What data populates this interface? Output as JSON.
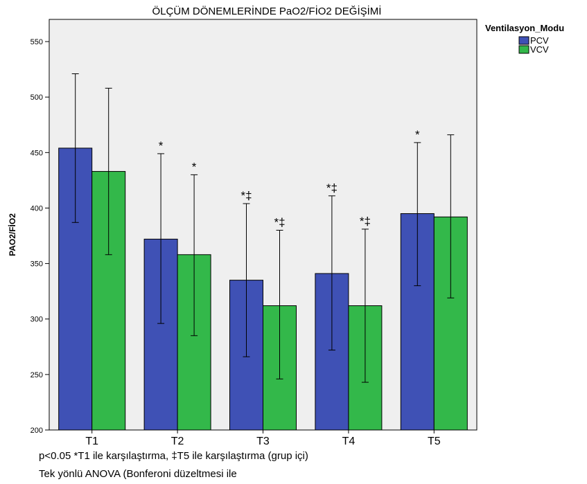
{
  "chart_data": {
    "type": "bar",
    "title": "ÖLÇÜM DÖNEMLERİNDE PaO2/FİO2 DEĞİŞİMİ",
    "xlabel": "",
    "ylabel": "PAO2/FİO2",
    "ylim": [
      200,
      570
    ],
    "yticks": [
      200,
      250,
      300,
      350,
      400,
      450,
      500,
      550
    ],
    "categories": [
      "T1",
      "T2",
      "T3",
      "T4",
      "T5"
    ],
    "series": [
      {
        "name": "PCV",
        "color": "#3f51b5",
        "values": [
          454,
          372,
          335,
          341,
          395
        ],
        "err_low": [
          387,
          296,
          266,
          272,
          330
        ],
        "err_high": [
          521,
          449,
          404,
          411,
          459
        ],
        "marks": [
          "",
          "*",
          "*‡",
          "*‡",
          "*"
        ]
      },
      {
        "name": "VCV",
        "color": "#33b84a",
        "values": [
          433,
          358,
          312,
          312,
          392
        ],
        "err_low": [
          358,
          285,
          246,
          243,
          319
        ],
        "err_high": [
          508,
          430,
          380,
          381,
          466
        ],
        "marks": [
          "",
          "*",
          "*‡",
          "*‡",
          ""
        ]
      }
    ],
    "legend": {
      "title": "Ventilasyon_Modu",
      "position": "right-top"
    },
    "grid": false,
    "plot_background": "#efefef"
  },
  "notes": [
    "p<0.05  *T1 ile karşılaştırma, ‡T5 ile karşılaştırma (grup içi)",
    "Tek yönlü ANOVA (Bonferoni düzeltmesi ile"
  ]
}
